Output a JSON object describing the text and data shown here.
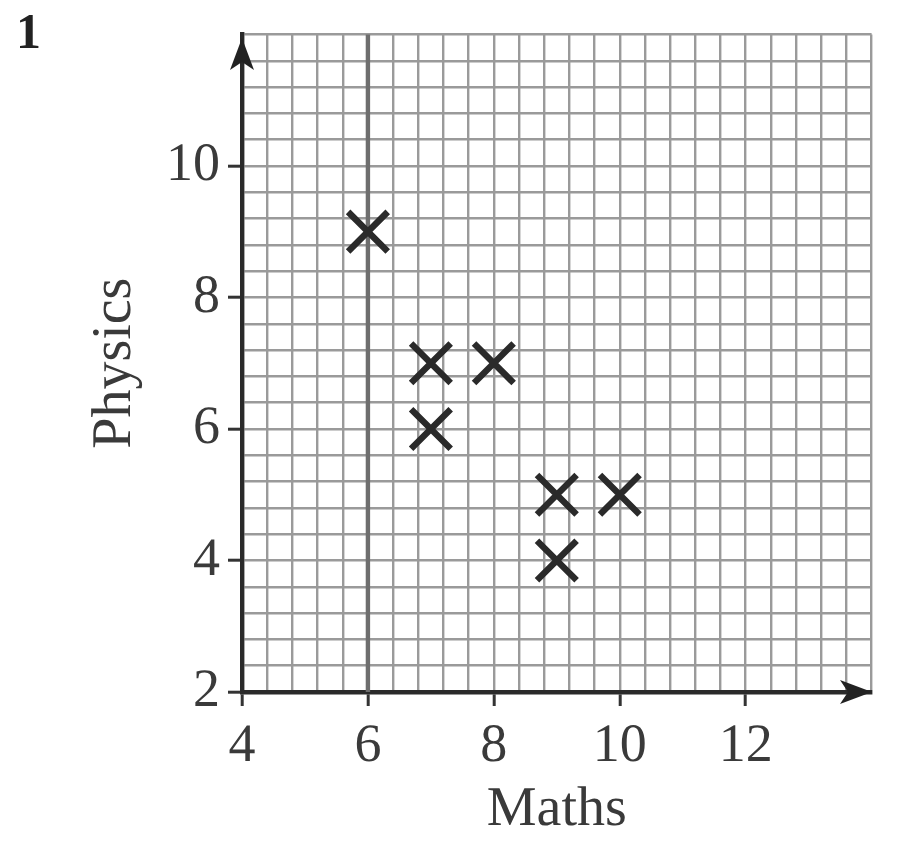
{
  "chart_data": {
    "type": "scatter",
    "annotations": [
      "1"
    ],
    "xlabel": "Maths",
    "ylabel": "Physics",
    "x": [
      6,
      7,
      8,
      7,
      9,
      10,
      9
    ],
    "values": [
      9,
      7,
      7,
      6,
      5,
      5,
      4
    ],
    "color": "#2a2a2a",
    "marker": "cross",
    "xlim": [
      4,
      14
    ],
    "ylim": [
      2,
      12
    ],
    "xticks": [
      4,
      {
        "value": 4.4,
        "label": null
      },
      {
        "value": 4.8,
        "label": null
      },
      {
        "value": 5.2,
        "label": null
      },
      {
        "value": 5.6,
        "label": null
      },
      6,
      {
        "value": 6.4,
        "label": null
      },
      {
        "value": 6.8,
        "label": null
      },
      {
        "value": 7.2,
        "label": null
      },
      {
        "value": 7.6,
        "label": null
      },
      8,
      {
        "value": 8.4,
        "label": null
      },
      {
        "value": 8.8,
        "label": null
      },
      {
        "value": 9.2,
        "label": null
      },
      {
        "value": 9.6,
        "label": null
      },
      10,
      {
        "value": 10.4,
        "label": null
      },
      {
        "value": 10.8,
        "label": null
      },
      {
        "value": 11.2,
        "label": null
      },
      {
        "value": 11.6,
        "label": null
      },
      12,
      {
        "value": 12.4,
        "label": null
      },
      {
        "value": 12.8,
        "label": null
      },
      {
        "value": 13.2,
        "label": null
      },
      {
        "value": 13.6,
        "label": null
      },
      {
        "value": 14,
        "label": null
      }
    ],
    "yticks": [
      2,
      {
        "value": 2.4,
        "label": null
      },
      {
        "value": 2.8,
        "label": null
      },
      {
        "value": 3.2,
        "label": null
      },
      {
        "value": 3.6,
        "label": null
      },
      4,
      {
        "value": 4.4,
        "label": null
      },
      {
        "value": 4.8,
        "label": null
      },
      {
        "value": 5.2,
        "label": null
      },
      {
        "value": 5.6,
        "label": null
      },
      6,
      {
        "value": 6.4,
        "label": null
      },
      {
        "value": 6.8,
        "label": null
      },
      {
        "value": 7.2,
        "label": null
      },
      {
        "value": 7.6,
        "label": null
      },
      8,
      {
        "value": 8.4,
        "label": null
      },
      {
        "value": 8.8,
        "label": null
      },
      {
        "value": 9.2,
        "label": null
      },
      {
        "value": 9.6,
        "label": null
      },
      10,
      {
        "value": 10.4,
        "label": null
      },
      {
        "value": 10.8,
        "label": null
      },
      {
        "value": 11.2,
        "label": null
      },
      {
        "value": 11.6,
        "label": null
      },
      {
        "value": 12,
        "label": null
      }
    ],
    "ref_lines": [
      {
        "axis": "x",
        "value": 6,
        "label": null,
        "color": "#6e6e6e"
      }
    ],
    "grid": true,
    "legend": false
  }
}
